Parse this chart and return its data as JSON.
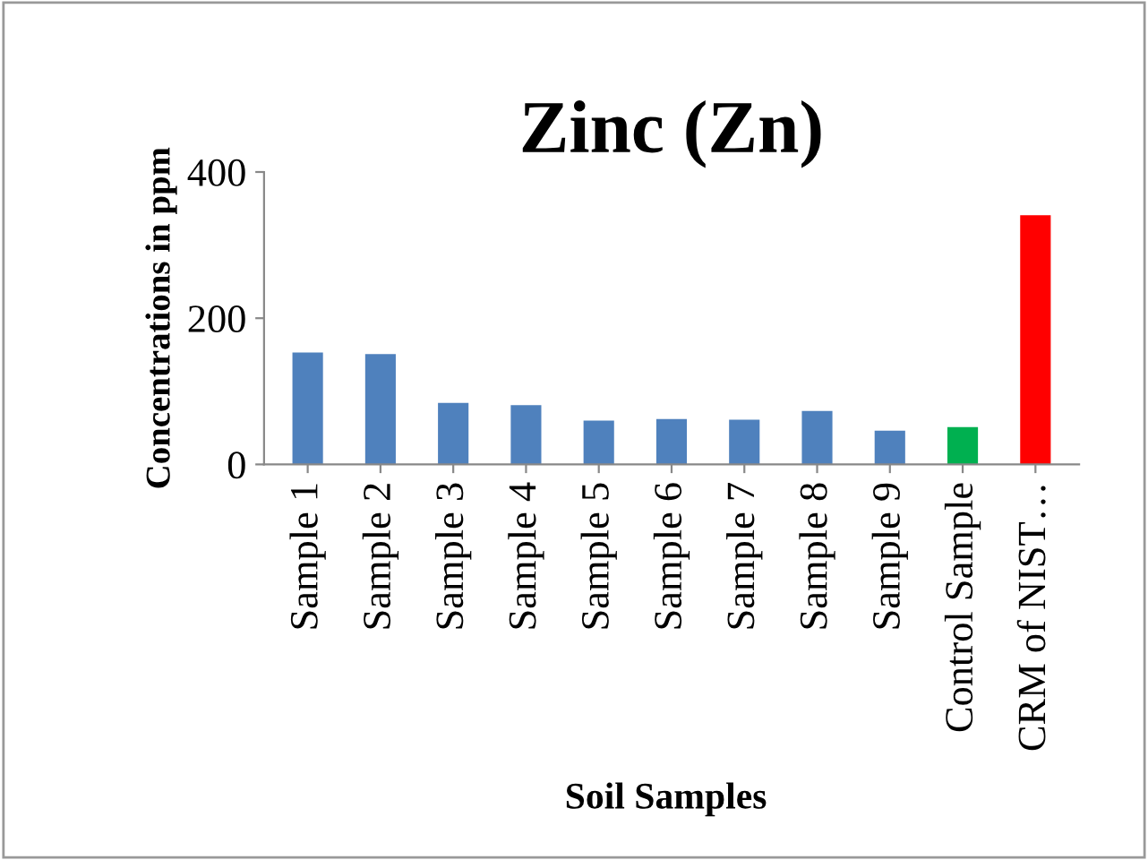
{
  "chart_data": {
    "type": "bar",
    "title": "Zinc (Zn)",
    "xlabel": "Soil Samples",
    "ylabel": "Concentrations in ppm",
    "categories": [
      "Sample 1",
      "Sample 2",
      "Sample 3",
      "Sample 4",
      "Sample 5",
      "Sample 6",
      "Sample 7",
      "Sample 8",
      "Sample 9",
      "Control Sample",
      "CRM of NIST…"
    ],
    "values": [
      153,
      151,
      84,
      81,
      60,
      62,
      61,
      73,
      46,
      51,
      341
    ],
    "colors": [
      "#4f81bd",
      "#4f81bd",
      "#4f81bd",
      "#4f81bd",
      "#4f81bd",
      "#4f81bd",
      "#4f81bd",
      "#4f81bd",
      "#4f81bd",
      "#00b050",
      "#ff0000"
    ],
    "ylim": [
      0,
      400
    ],
    "yticks": [
      0,
      200,
      400
    ],
    "grid": false,
    "legend": false
  }
}
